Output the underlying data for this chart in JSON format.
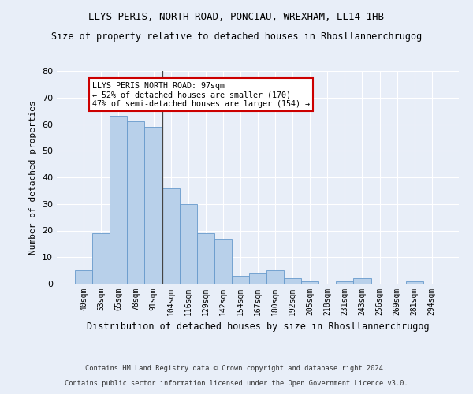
{
  "title": "LLYS PERIS, NORTH ROAD, PONCIAU, WREXHAM, LL14 1HB",
  "subtitle": "Size of property relative to detached houses in Rhosllannerchrugog",
  "xlabel": "Distribution of detached houses by size in Rhosllannerchrugog",
  "ylabel": "Number of detached properties",
  "footer1": "Contains HM Land Registry data © Crown copyright and database right 2024.",
  "footer2": "Contains public sector information licensed under the Open Government Licence v3.0.",
  "categories": [
    "40sqm",
    "53sqm",
    "65sqm",
    "78sqm",
    "91sqm",
    "104sqm",
    "116sqm",
    "129sqm",
    "142sqm",
    "154sqm",
    "167sqm",
    "180sqm",
    "192sqm",
    "205sqm",
    "218sqm",
    "231sqm",
    "243sqm",
    "256sqm",
    "269sqm",
    "281sqm",
    "294sqm"
  ],
  "values": [
    5,
    19,
    63,
    61,
    59,
    36,
    30,
    19,
    17,
    3,
    4,
    5,
    2,
    1,
    0,
    1,
    2,
    0,
    0,
    1,
    0
  ],
  "bar_color": "#b8d0ea",
  "bar_edge_color": "#6699cc",
  "background_color": "#e8eef8",
  "grid_color": "#ffffff",
  "annotation_line1": "LLYS PERIS NORTH ROAD: 97sqm",
  "annotation_line2": "← 52% of detached houses are smaller (170)",
  "annotation_line3": "47% of semi-detached houses are larger (154) →",
  "annotation_box_color": "#ffffff",
  "annotation_box_edge_color": "#cc0000",
  "vline_pos": 4.5,
  "ylim": [
    0,
    80
  ],
  "yticks": [
    0,
    10,
    20,
    30,
    40,
    50,
    60,
    70,
    80
  ]
}
